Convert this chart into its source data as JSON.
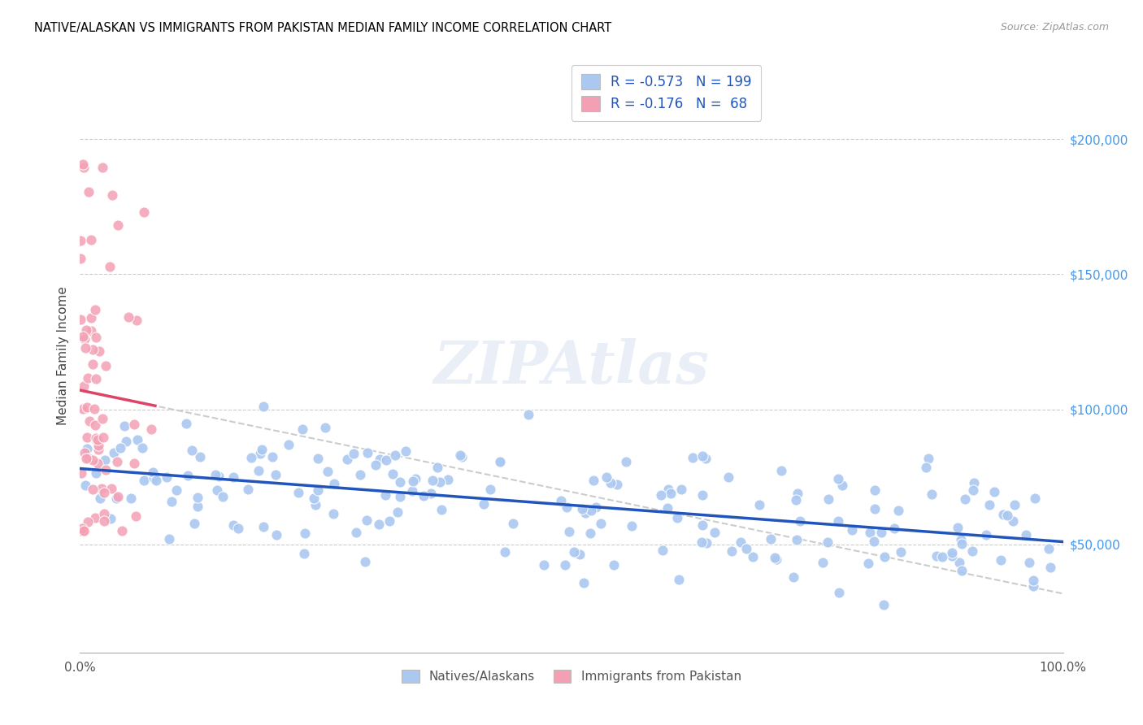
{
  "title": "NATIVE/ALASKAN VS IMMIGRANTS FROM PAKISTAN MEDIAN FAMILY INCOME CORRELATION CHART",
  "source": "Source: ZipAtlas.com",
  "ylabel": "Median Family Income",
  "y_tick_labels": [
    "$50,000",
    "$100,000",
    "$150,000",
    "$200,000"
  ],
  "y_tick_values": [
    50000,
    100000,
    150000,
    200000
  ],
  "ylim": [
    10000,
    230000
  ],
  "xlim": [
    0.0,
    1.0
  ],
  "series1_label": "Natives/Alaskans",
  "series2_label": "Immigrants from Pakistan",
  "series1_color": "#aac8f0",
  "series2_color": "#f4a0b4",
  "trendline1_color": "#2255bb",
  "trendline2_color": "#dd4466",
  "trendline_dashed_color": "#cccccc",
  "watermark": "ZIPAtlas",
  "R1": -0.573,
  "N1": 199,
  "R2": -0.176,
  "N2": 68,
  "seed1": 42,
  "seed2": 77,
  "y_right_color": "#4499ee",
  "legend_r1": "R = -0.573",
  "legend_n1": "N = 199",
  "legend_r2": "R = -0.176",
  "legend_n2": "N =  68"
}
